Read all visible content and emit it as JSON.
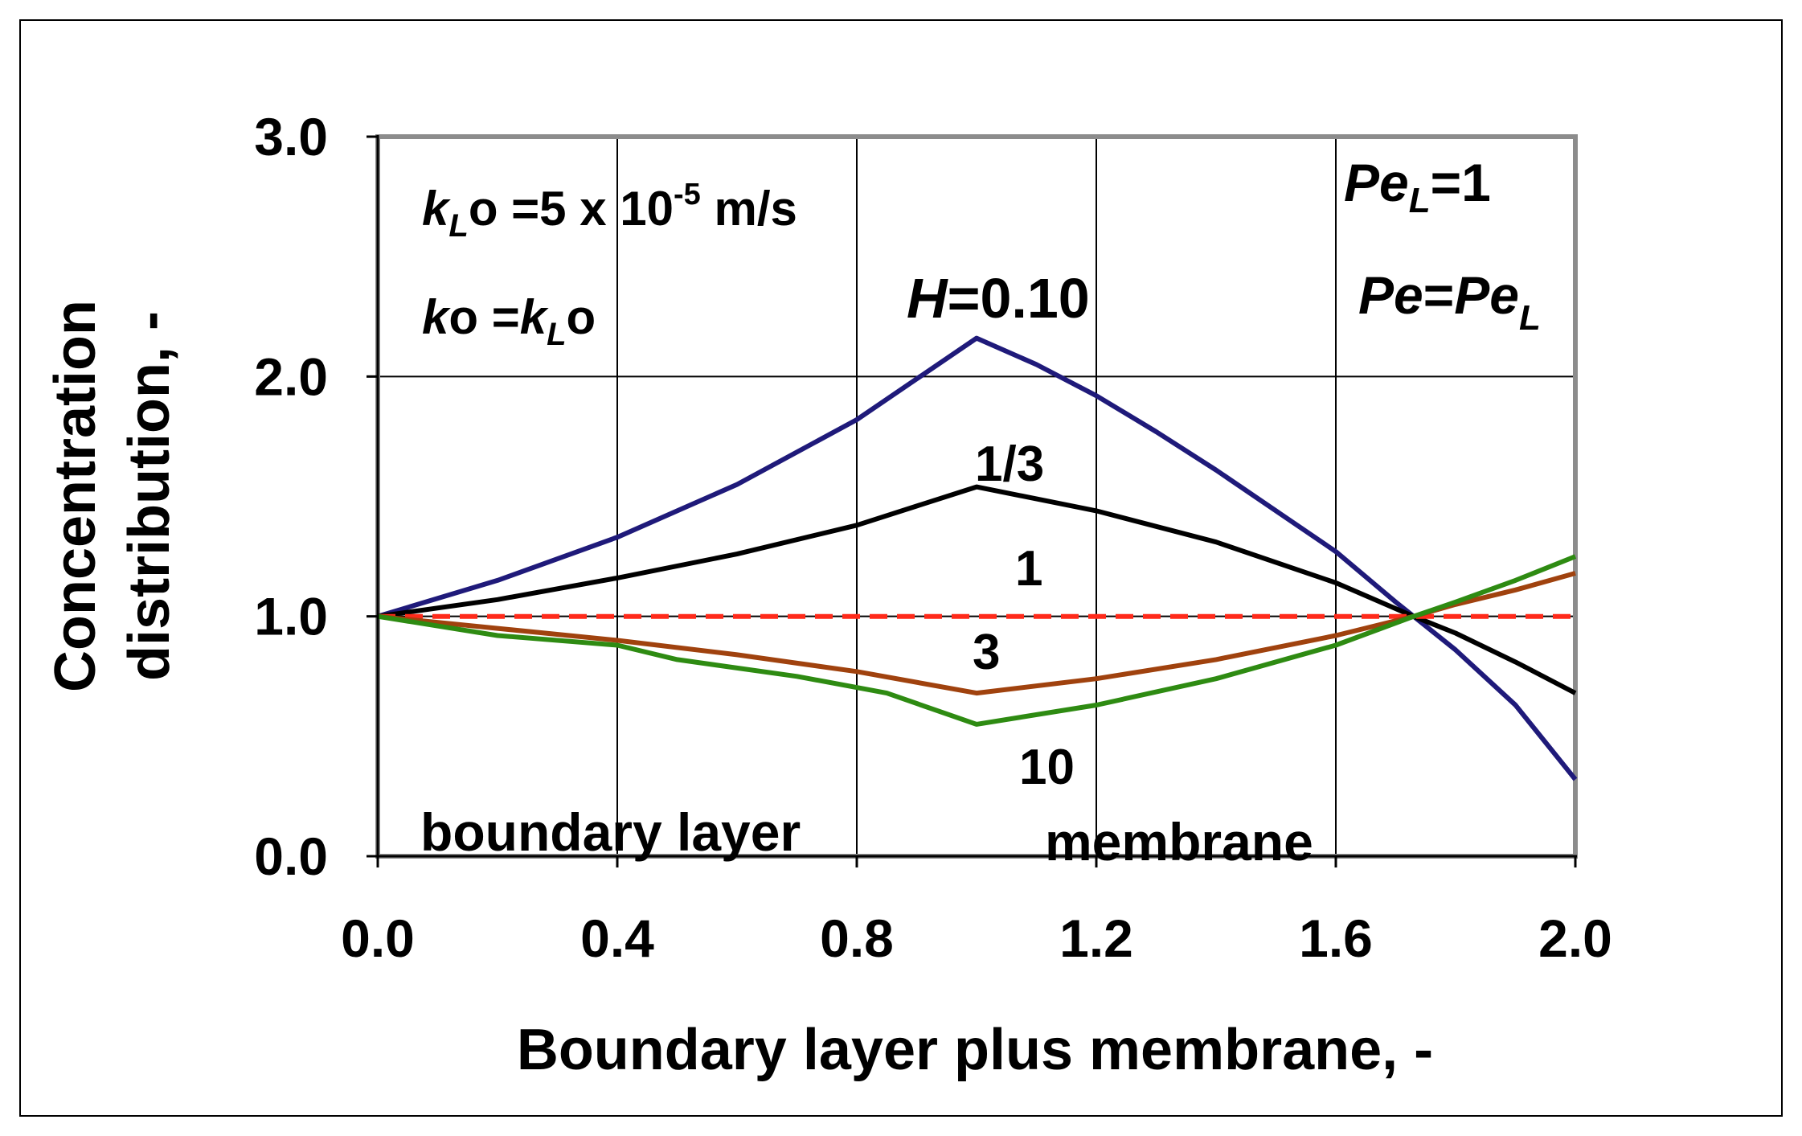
{
  "chart_data": {
    "type": "line",
    "title": "",
    "xlabel": "Boundary layer plus membrane, -",
    "ylabel_line1": "Concentration",
    "ylabel_line2": "distribution, -",
    "xlim": [
      0.0,
      2.0
    ],
    "ylim": [
      0.0,
      3.0
    ],
    "x_ticks": [
      "0.0",
      "0.4",
      "0.8",
      "1.2",
      "1.6",
      "2.0"
    ],
    "y_ticks": [
      "0.0",
      "1.0",
      "2.0",
      "3.0"
    ],
    "grid": true,
    "legend": "none",
    "series": [
      {
        "name": "0.10",
        "color": "#1f1a7a",
        "dash": false,
        "x": [
          0,
          0.2,
          0.4,
          0.6,
          0.8,
          1.0,
          1.1,
          1.2,
          1.3,
          1.4,
          1.5,
          1.6,
          1.7,
          1.8,
          1.9,
          2.0
        ],
        "y": [
          1.0,
          1.15,
          1.33,
          1.55,
          1.82,
          2.16,
          2.05,
          1.92,
          1.77,
          1.61,
          1.44,
          1.27,
          1.06,
          0.86,
          0.63,
          0.32
        ]
      },
      {
        "name": "1/3",
        "color": "#000000",
        "dash": false,
        "x": [
          0,
          0.2,
          0.4,
          0.6,
          0.8,
          1.0,
          1.2,
          1.4,
          1.6,
          1.73,
          1.8,
          1.9,
          2.0
        ],
        "y": [
          1.0,
          1.07,
          1.16,
          1.26,
          1.38,
          1.54,
          1.44,
          1.31,
          1.14,
          1.0,
          0.93,
          0.81,
          0.68
        ]
      },
      {
        "name": "1",
        "color": "#ff2a1a",
        "dash": true,
        "x": [
          0,
          2.0
        ],
        "y": [
          1.0,
          1.0
        ]
      },
      {
        "name": "3",
        "color": "#a0420e",
        "dash": false,
        "x": [
          0,
          0.2,
          0.4,
          0.6,
          0.8,
          1.0,
          1.2,
          1.4,
          1.6,
          1.73,
          1.8,
          1.9,
          2.0
        ],
        "y": [
          1.0,
          0.95,
          0.9,
          0.84,
          0.77,
          0.68,
          0.74,
          0.82,
          0.92,
          1.0,
          1.05,
          1.11,
          1.18
        ]
      },
      {
        "name": "10",
        "color": "#2e8b12",
        "dash": false,
        "x": [
          0,
          0.2,
          0.4,
          0.5,
          0.7,
          0.85,
          1.0,
          1.2,
          1.4,
          1.6,
          1.73,
          1.8,
          1.9,
          2.0
        ],
        "y": [
          1.0,
          0.92,
          0.88,
          0.82,
          0.75,
          0.68,
          0.55,
          0.63,
          0.74,
          0.88,
          1.0,
          1.06,
          1.15,
          1.25
        ]
      }
    ],
    "annotations": {
      "kL_k": "k",
      "kL_sub": "L",
      "kL_rest": "o =5 x 10",
      "kL_exp": "-5",
      "kL_unit": " m/s",
      "k0_k": "k",
      "k0_mid": "o =",
      "k0_k2": "k",
      "k0_sub": "L",
      "k0_end": "o",
      "H_var": "H",
      "H_val": "=0.10",
      "label_1_3": "1/3",
      "label_1": "1",
      "label_3": "3",
      "label_10": "10",
      "pe1_pe": "Pe",
      "pe1_sub": "L",
      "pe1_val": "=1",
      "pe2_pe": "Pe",
      "pe2_eq": "=",
      "pe2_pe2": "Pe",
      "pe2_sub": "L",
      "boundary_layer": "boundary layer",
      "membrane": "membrane"
    }
  }
}
